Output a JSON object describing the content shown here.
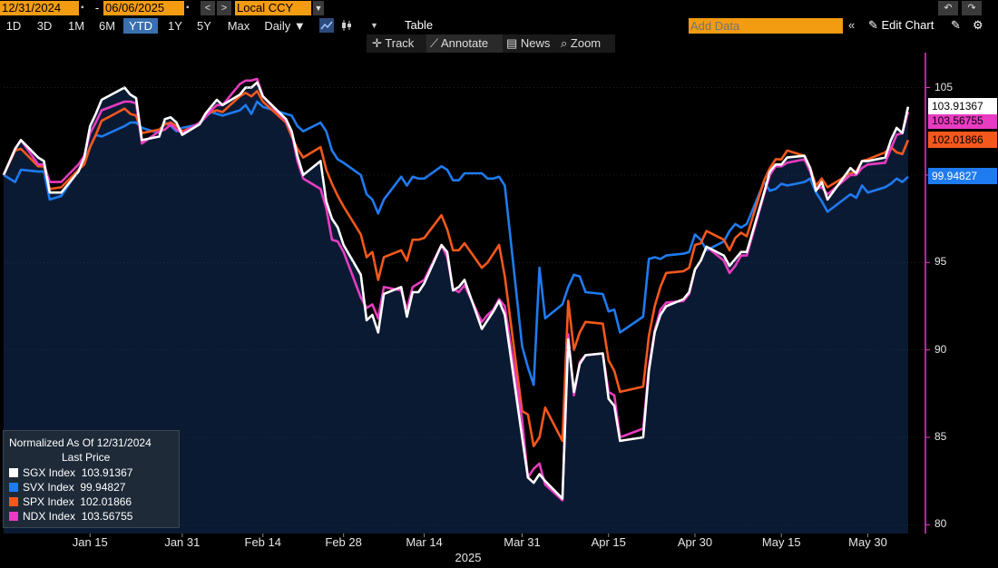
{
  "toolbar": {
    "start_date": "12/31/2024",
    "end_date": "06/06/2025",
    "currency": "Local CCY",
    "periods": [
      "1D",
      "3D",
      "1M",
      "6M",
      "YTD",
      "1Y",
      "5Y",
      "Max"
    ],
    "active_period": "YTD",
    "frequency": "Daily ▼",
    "table_label": "Table",
    "add_data_placeholder": "Add Data",
    "edit_chart_label": "Edit Chart",
    "undo_icon": "undo-icon",
    "redo_icon": "redo-icon",
    "gear_icon": "gear-icon"
  },
  "subtoolbar": {
    "track": "Track",
    "annotate": "Annotate",
    "news": "News",
    "zoom": "Zoom"
  },
  "legend": {
    "title": "Normalized As Of 12/31/2024",
    "subtitle": "Last Price",
    "items": [
      {
        "name": "SGX Index",
        "value": "103.91367",
        "color": "#ffffff"
      },
      {
        "name": "SVX Index",
        "value": "99.94827",
        "color": "#1f7bf0"
      },
      {
        "name": "SPX Index",
        "value": "102.01866",
        "color": "#f4581d"
      },
      {
        "name": "NDX Index",
        "value": "103.56755",
        "color": "#e83cc1"
      }
    ]
  },
  "last_values": [
    {
      "label": "103.91367",
      "value": 103.91367,
      "bg": "#ffffff",
      "fg": "#000000"
    },
    {
      "label": "103.56755",
      "value": 103.56755,
      "bg": "#e83cc1",
      "fg": "#000000"
    },
    {
      "label": "102.01866",
      "value": 102.01866,
      "bg": "#f4581d",
      "fg": "#000000"
    },
    {
      "label": "99.94827",
      "value": 99.94827,
      "bg": "#1f7bf0",
      "fg": "#ffffff"
    }
  ],
  "chart_data": {
    "type": "line",
    "ylim": [
      79.5,
      107
    ],
    "yticks": [
      80,
      85,
      90,
      95,
      100,
      105
    ],
    "ytick_labels": [
      "80",
      "85",
      "90",
      "95",
      "",
      "105"
    ],
    "xlim": [
      "2024-12-31",
      "2025-06-09"
    ],
    "xticks": [
      {
        "label": "Jan 15",
        "date": "2025-01-15"
      },
      {
        "label": "Jan 31",
        "date": "2025-01-31"
      },
      {
        "label": "Feb 14",
        "date": "2025-02-14"
      },
      {
        "label": "Feb 28",
        "date": "2025-02-28"
      },
      {
        "label": "Mar 14",
        "date": "2025-03-14"
      },
      {
        "label": "Mar 31",
        "date": "2025-03-31"
      },
      {
        "label": "Apr 15",
        "date": "2025-04-15"
      },
      {
        "label": "Apr 30",
        "date": "2025-04-30"
      },
      {
        "label": "May 15",
        "date": "2025-05-15"
      },
      {
        "label": "May 30",
        "date": "2025-05-30"
      }
    ],
    "year_label": "2025",
    "x": [
      "2024-12-31",
      "2025-01-02",
      "2025-01-03",
      "2025-01-06",
      "2025-01-07",
      "2025-01-08",
      "2025-01-10",
      "2025-01-13",
      "2025-01-14",
      "2025-01-15",
      "2025-01-16",
      "2025-01-17",
      "2025-01-21",
      "2025-01-22",
      "2025-01-23",
      "2025-01-24",
      "2025-01-27",
      "2025-01-28",
      "2025-01-29",
      "2025-01-30",
      "2025-01-31",
      "2025-02-03",
      "2025-02-04",
      "2025-02-05",
      "2025-02-06",
      "2025-02-07",
      "2025-02-10",
      "2025-02-11",
      "2025-02-12",
      "2025-02-13",
      "2025-02-14",
      "2025-02-18",
      "2025-02-19",
      "2025-02-20",
      "2025-02-21",
      "2025-02-24",
      "2025-02-25",
      "2025-02-26",
      "2025-02-27",
      "2025-02-28",
      "2025-03-03",
      "2025-03-04",
      "2025-03-05",
      "2025-03-06",
      "2025-03-07",
      "2025-03-10",
      "2025-03-11",
      "2025-03-12",
      "2025-03-13",
      "2025-03-14",
      "2025-03-17",
      "2025-03-18",
      "2025-03-19",
      "2025-03-20",
      "2025-03-21",
      "2025-03-24",
      "2025-03-25",
      "2025-03-26",
      "2025-03-27",
      "2025-03-28",
      "2025-03-31",
      "2025-04-01",
      "2025-04-02",
      "2025-04-03",
      "2025-04-04",
      "2025-04-07",
      "2025-04-08",
      "2025-04-09",
      "2025-04-10",
      "2025-04-11",
      "2025-04-14",
      "2025-04-15",
      "2025-04-16",
      "2025-04-17",
      "2025-04-21",
      "2025-04-22",
      "2025-04-23",
      "2025-04-24",
      "2025-04-25",
      "2025-04-28",
      "2025-04-29",
      "2025-04-30",
      "2025-05-01",
      "2025-05-02",
      "2025-05-05",
      "2025-05-06",
      "2025-05-07",
      "2025-05-08",
      "2025-05-09",
      "2025-05-12",
      "2025-05-13",
      "2025-05-14",
      "2025-05-15",
      "2025-05-16",
      "2025-05-19",
      "2025-05-20",
      "2025-05-21",
      "2025-05-22",
      "2025-05-23",
      "2025-05-27",
      "2025-05-28",
      "2025-05-29",
      "2025-05-30",
      "2025-06-02",
      "2025-06-03",
      "2025-06-04",
      "2025-06-05",
      "2025-06-06"
    ],
    "series": [
      {
        "name": "SGX Index",
        "color": "#ffffff",
        "values": [
          100,
          101.5,
          102.0,
          101.0,
          100.8,
          99.0,
          99.0,
          100.2,
          101.0,
          102.8,
          103.5,
          104.3,
          105.0,
          104.6,
          104.4,
          102.0,
          102.2,
          103.2,
          103.3,
          103.0,
          102.3,
          102.9,
          103.5,
          103.9,
          104.3,
          104.0,
          104.6,
          105.0,
          105.0,
          105.3,
          104.5,
          103.2,
          102.5,
          101.1,
          100.0,
          100.8,
          98.5,
          97.5,
          97.0,
          96.0,
          94.3,
          91.7,
          92.0,
          91.0,
          93.2,
          93.6,
          91.9,
          93.3,
          93.3,
          93.8,
          96.0,
          95.6,
          93.4,
          93.6,
          94.0,
          91.2,
          91.7,
          92.2,
          92.8,
          92.0,
          85.0,
          82.7,
          82.4,
          82.9,
          82.5,
          81.5,
          90.6,
          87.6,
          89.2,
          89.7,
          89.8,
          87.2,
          86.8,
          84.8,
          85.0,
          88.8,
          91.0,
          92.0,
          92.5,
          92.9,
          93.3,
          94.6,
          95.1,
          95.9,
          95.4,
          94.8,
          95.2,
          95.6,
          95.6,
          99.0,
          100.2,
          100.6,
          100.6,
          101.0,
          101.1,
          100.4,
          99.1,
          99.6,
          98.6,
          100.4,
          100.1,
          100.8,
          100.8,
          101.0,
          102.0,
          102.7,
          102.4,
          103.9
        ]
      },
      {
        "name": "NDX Index",
        "color": "#e83cc1",
        "values": [
          100,
          101.5,
          102.0,
          100.6,
          100.6,
          99.6,
          99.6,
          100.6,
          101.1,
          102.4,
          103.0,
          103.7,
          104.2,
          104.2,
          104.1,
          101.8,
          102.5,
          102.6,
          102.9,
          102.6,
          102.4,
          103.0,
          103.3,
          103.7,
          104.0,
          104.0,
          105.2,
          105.4,
          105.4,
          105.5,
          104.5,
          103.1,
          102.4,
          100.8,
          99.8,
          99.2,
          98.1,
          96.3,
          96.2,
          95.6,
          93.0,
          92.4,
          92.6,
          91.8,
          93.6,
          93.4,
          92.3,
          93.6,
          93.8,
          94.0,
          96.0,
          95.3,
          93.5,
          93.3,
          93.7,
          91.6,
          92.0,
          92.3,
          92.9,
          92.5,
          86.0,
          82.7,
          83.2,
          83.5,
          82.3,
          81.4,
          90.9,
          87.4,
          89.3,
          89.7,
          89.8,
          87.6,
          87.4,
          85.0,
          85.5,
          89.0,
          91.1,
          92.3,
          92.7,
          92.8,
          93.2,
          94.6,
          95.1,
          95.9,
          95.1,
          94.4,
          94.8,
          95.4,
          95.4,
          98.9,
          100.0,
          100.5,
          100.5,
          100.7,
          100.9,
          100.2,
          99.2,
          99.3,
          98.9,
          100.0,
          100.0,
          100.4,
          100.6,
          100.7,
          101.5,
          102.3,
          102.4,
          103.6
        ]
      },
      {
        "name": "SPX Index",
        "color": "#f4581d",
        "values": [
          100,
          101.4,
          101.5,
          100.5,
          100.5,
          99.2,
          99.3,
          100.3,
          100.6,
          101.6,
          102.3,
          103.1,
          103.8,
          103.5,
          103.4,
          102.4,
          102.6,
          102.9,
          103.0,
          102.8,
          102.5,
          102.9,
          103.4,
          103.6,
          103.7,
          103.6,
          104.5,
          104.7,
          104.5,
          104.8,
          104.2,
          103.0,
          102.2,
          101.5,
          101.0,
          101.6,
          100.3,
          99.5,
          98.8,
          98.2,
          96.6,
          95.3,
          95.6,
          94.0,
          95.3,
          95.7,
          95.1,
          96.3,
          96.3,
          96.4,
          97.7,
          96.9,
          95.7,
          95.7,
          96.1,
          94.7,
          95.0,
          95.5,
          96.0,
          94.2,
          86.5,
          86.3,
          84.5,
          85.0,
          86.7,
          84.8,
          92.8,
          90.0,
          91.0,
          91.6,
          91.5,
          89.4,
          88.8,
          87.6,
          87.9,
          90.8,
          92.5,
          93.6,
          94.4,
          94.5,
          94.7,
          96.0,
          96.1,
          96.8,
          96.3,
          95.7,
          96.4,
          96.7,
          96.5,
          99.7,
          100.4,
          100.9,
          100.9,
          101.4,
          101.1,
          100.4,
          99.4,
          99.8,
          99.3,
          100.1,
          100.2,
          100.8,
          100.9,
          101.3,
          101.6,
          101.3,
          101.2,
          102.0
        ]
      },
      {
        "name": "SVX Index",
        "color": "#1f7bf0",
        "values": [
          100,
          99.6,
          100.3,
          100.2,
          100.2,
          98.6,
          98.8,
          100.3,
          100.8,
          101.6,
          102.3,
          102.2,
          102.8,
          103.0,
          103.0,
          102.7,
          102.4,
          103.0,
          102.8,
          102.5,
          102.7,
          102.9,
          103.3,
          103.6,
          103.5,
          103.4,
          103.7,
          104.0,
          103.5,
          104.2,
          103.9,
          103.5,
          103.4,
          102.8,
          102.5,
          103.0,
          102.5,
          101.4,
          100.9,
          100.7,
          100.0,
          98.9,
          98.6,
          97.8,
          98.6,
          99.9,
          99.4,
          99.9,
          99.8,
          99.8,
          100.5,
          100.3,
          99.7,
          99.7,
          100.1,
          100.1,
          99.8,
          99.8,
          99.9,
          99.4,
          90.2,
          89.0,
          88.0,
          94.7,
          91.8,
          92.6,
          93.6,
          94.3,
          94.2,
          93.3,
          93.2,
          92.2,
          92.3,
          91.0,
          91.9,
          95.2,
          95.3,
          95.2,
          95.4,
          95.5,
          95.6,
          96.6,
          96.3,
          95.7,
          96.2,
          96.8,
          97.2,
          97.0,
          97.2,
          99.6,
          99.1,
          99.2,
          99.5,
          99.4,
          99.6,
          99.8,
          99.0,
          98.5,
          97.9,
          98.9,
          98.7,
          99.4,
          99.0,
          99.3,
          99.5,
          99.8,
          99.6,
          99.9
        ]
      }
    ]
  }
}
